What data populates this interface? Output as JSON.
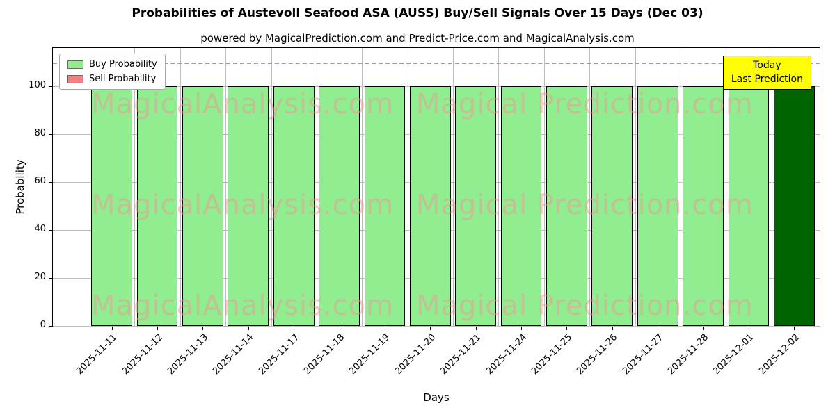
{
  "chart_data": {
    "type": "bar",
    "title": "Probabilities of Austevoll Seafood ASA (AUSS) Buy/Sell Signals Over 15 Days (Dec 03)",
    "subtitle": "powered by MagicalPrediction.com and Predict-Price.com and MagicalAnalysis.com",
    "xlabel": "Days",
    "ylabel": "Probability",
    "categories": [
      "2025-11-11",
      "2025-11-12",
      "2025-11-13",
      "2025-11-14",
      "2025-11-17",
      "2025-11-18",
      "2025-11-19",
      "2025-11-20",
      "2025-11-21",
      "2025-11-24",
      "2025-11-25",
      "2025-11-26",
      "2025-11-27",
      "2025-11-28",
      "2025-12-01",
      "2025-12-02"
    ],
    "series": [
      {
        "name": "Buy Probability",
        "color": "#90ee90",
        "values": [
          100,
          100,
          100,
          100,
          100,
          100,
          100,
          100,
          100,
          100,
          100,
          100,
          100,
          100,
          100,
          100
        ]
      },
      {
        "name": "Sell Probability",
        "color": "#f08080",
        "values": [
          0,
          0,
          0,
          0,
          0,
          0,
          0,
          0,
          0,
          0,
          0,
          0,
          0,
          0,
          0,
          0
        ]
      }
    ],
    "highlight_last_bar": {
      "category": "2025-12-02",
      "color": "#006400"
    },
    "yticks": [
      0,
      20,
      40,
      60,
      80,
      100
    ],
    "ylim": [
      0,
      116
    ],
    "dashed_guideline_y": 110,
    "grid": true,
    "legend_position": "upper left"
  },
  "annotation_box": {
    "line1": "Today",
    "line2": "Last Prediction",
    "bg_color": "#ffff00"
  },
  "watermark": {
    "left_text": "MagicalAnalysis.com",
    "right_text": "Magical Prediction.com"
  }
}
